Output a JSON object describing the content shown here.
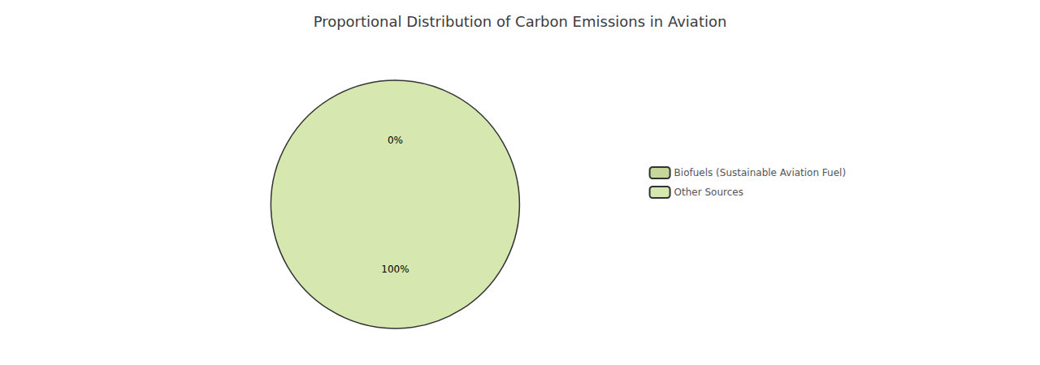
{
  "chart_data": {
    "type": "pie",
    "title": "Proportional Distribution of Carbon Emissions in Aviation",
    "categories": [
      "Biofuels (Sustainable Aviation Fuel)",
      "Other Sources"
    ],
    "values": [
      0.001,
      99.999
    ],
    "value_labels": [
      "0%",
      "100%"
    ],
    "colors": [
      "#c5d89a",
      "#d6e8b0"
    ],
    "data_labels": true,
    "legend": "right"
  }
}
